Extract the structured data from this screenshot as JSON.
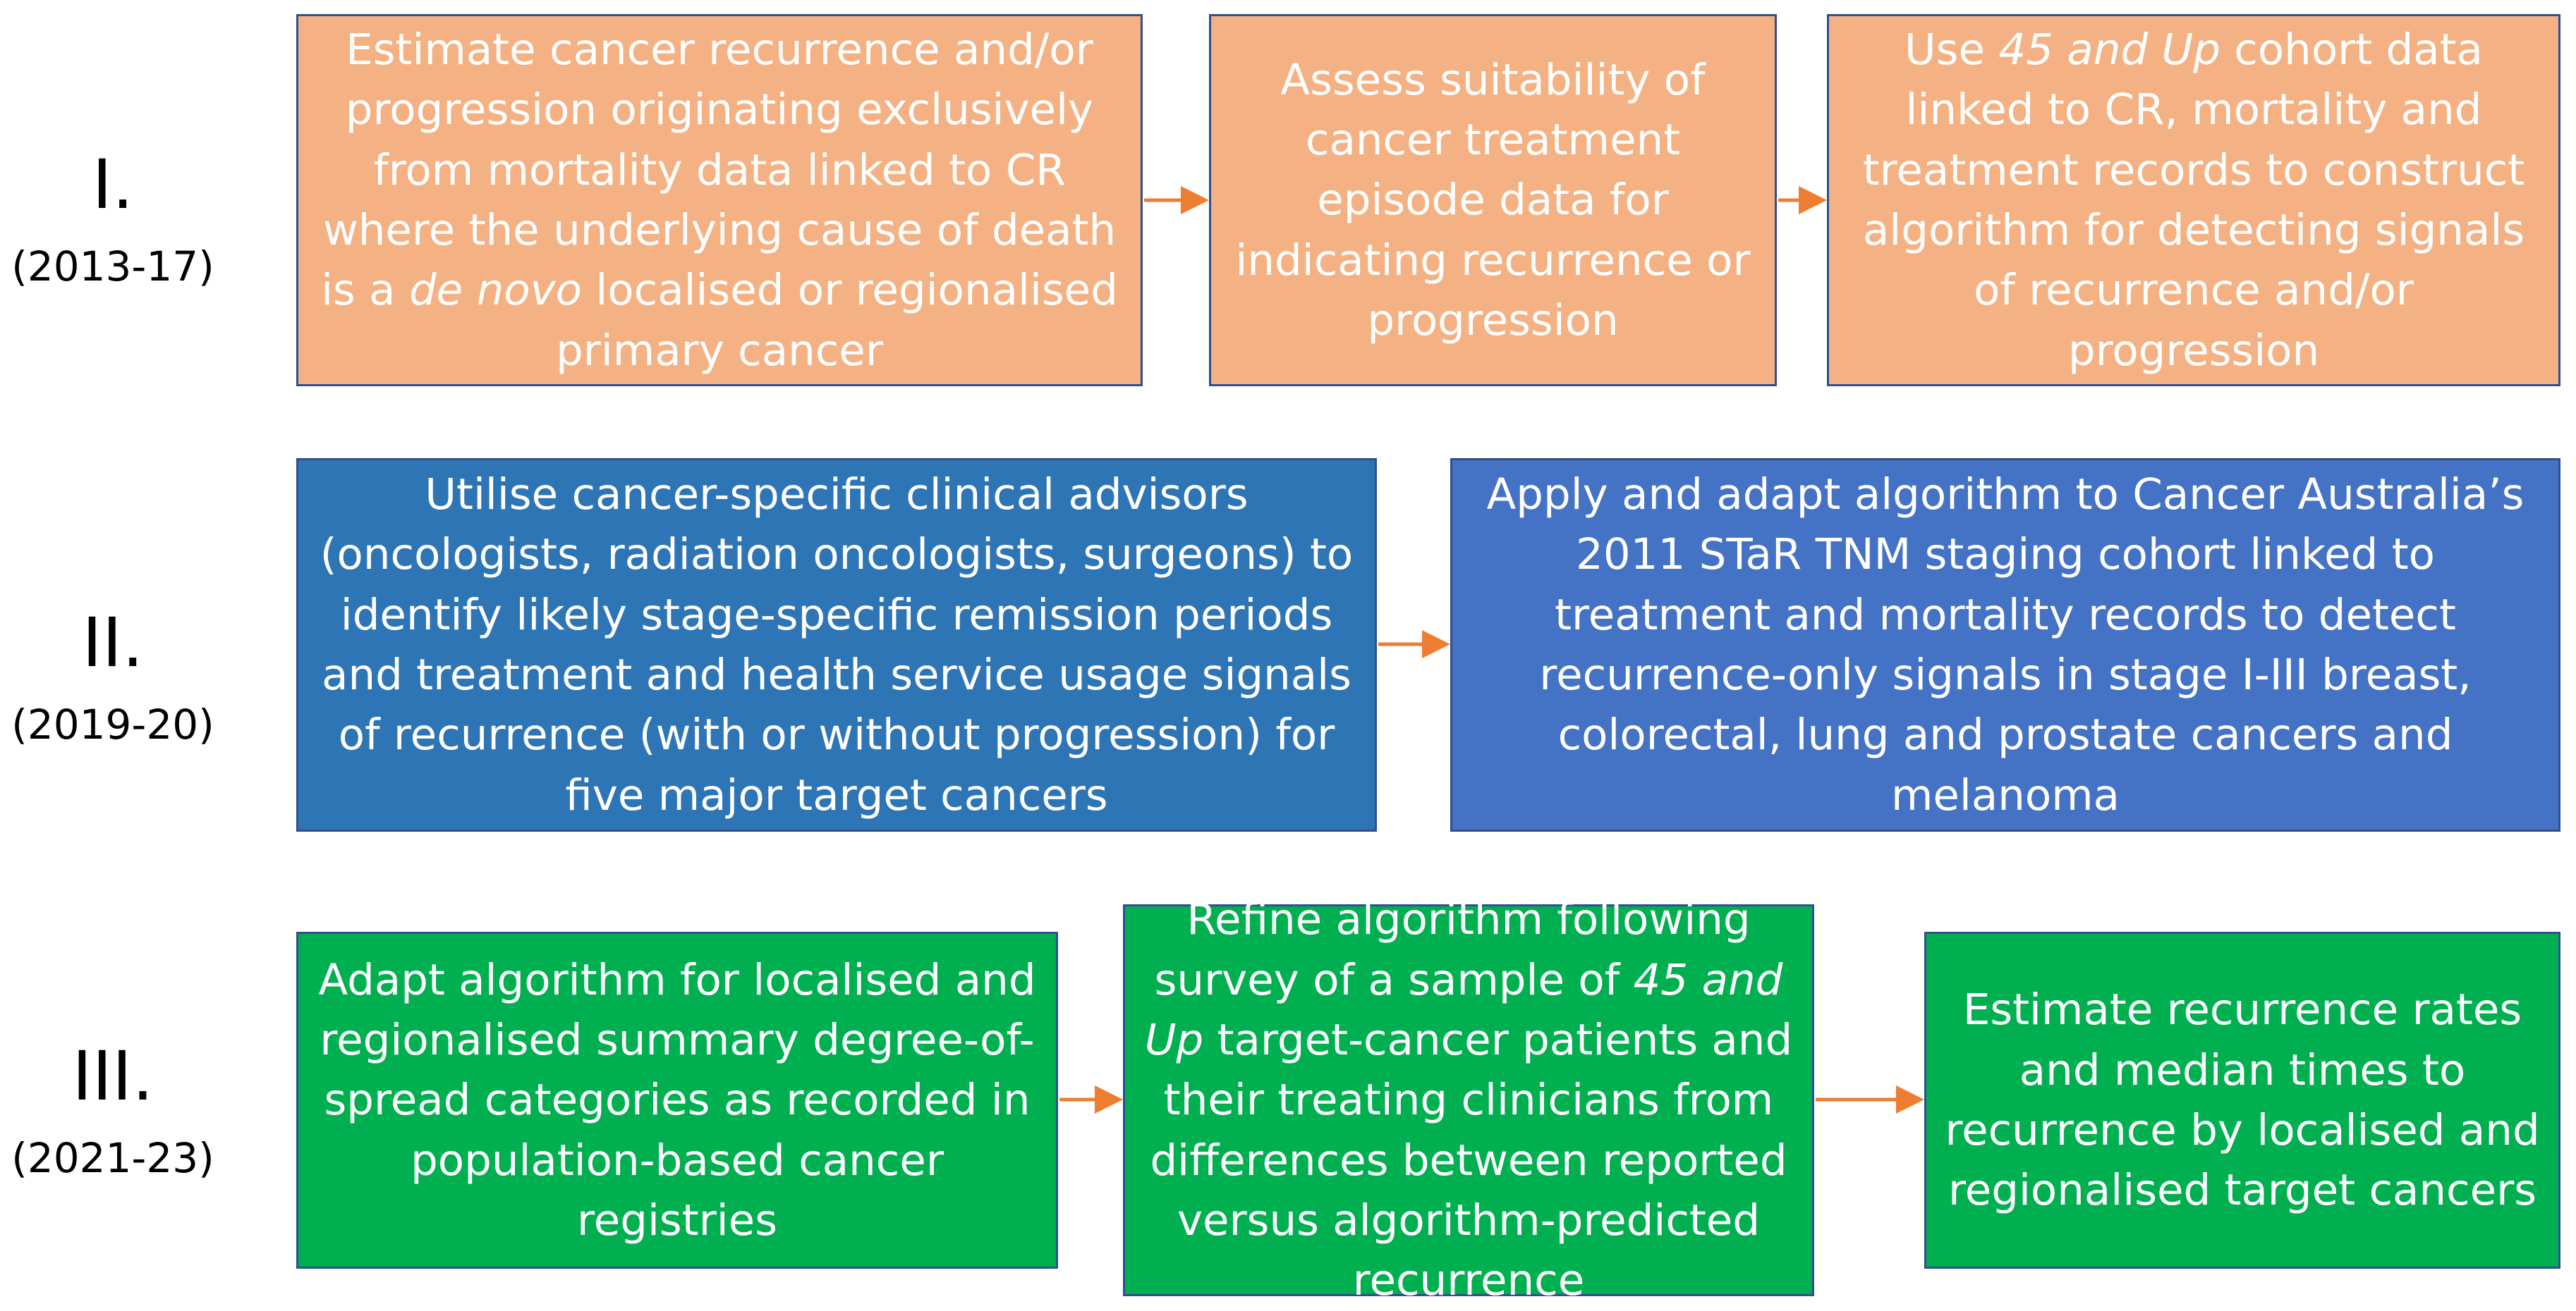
{
  "phases": [
    {
      "roman": "I.",
      "years": "(2013-17)"
    },
    {
      "roman": "II.",
      "years": "(2019-20)"
    },
    {
      "roman": "III.",
      "years": "(2021-23)"
    }
  ],
  "row1": {
    "box1": {
      "pre": "Estimate cancer recurrence and/or progression originating exclusively from mortality data linked to CR where the underlying cause of death is a ",
      "italic": "de novo",
      "post": " localised or regionalised primary cancer"
    },
    "box2": {
      "text": "Assess suitability of cancer treatment episode data for indicating recurrence or progression"
    },
    "box3": {
      "pre": "Use ",
      "italic": "45 and Up",
      "post": " cohort data linked to CR, mortality and treatment records to construct algorithm for detecting signals of recurrence and/or progression"
    }
  },
  "row2": {
    "box1": {
      "text": "Utilise cancer-specific clinical advisors (oncologists, radiation oncologists, surgeons) to identify likely stage-specific remission periods and treatment and health service usage signals of recurrence (with or without progression) for five major target cancers"
    },
    "box2": {
      "text": "Apply and adapt algorithm to Cancer Australia’s 2011 STaR TNM staging cohort linked to treatment and mortality records to detect recurrence-only signals in stage I-III breast, colorectal, lung and prostate cancers and melanoma"
    }
  },
  "row3": {
    "box1": {
      "text": "Adapt algorithm for localised and regionalised summary degree-of-spread categories as recorded in population-based cancer registries"
    },
    "box2": {
      "pre": "Refine algorithm following survey of a sample of ",
      "italic": "45 and Up",
      "post": " target-cancer patients and their treating clinicians from differences between reported versus algorithm-predicted recurrence"
    },
    "box3": {
      "text": "Estimate recurrence rates and median times to recurrence by localised and regionalised target cancers"
    }
  },
  "colors": {
    "orange": "#f4b183",
    "blue_dark": "#2e75b6",
    "blue_mid": "#4472c4",
    "green": "#00b050",
    "arrow": "#ed7d31",
    "border": "#2f4f8f"
  }
}
